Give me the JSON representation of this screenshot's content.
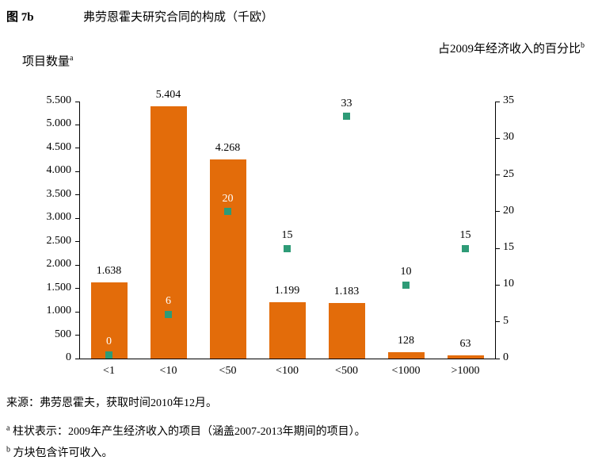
{
  "figure": {
    "tag": "图 7b",
    "title": "弗劳恩霍夫研究合同的构成（千欧）"
  },
  "left_axis_title": {
    "text": "项目数量",
    "sup": "a"
  },
  "right_axis_title": {
    "text": "占2009年经济收入的百分比",
    "sup": "b"
  },
  "chart_data": {
    "type": "combo",
    "title": "弗劳恩霍夫研究合同的构成（千欧）",
    "categories": [
      "<1",
      "<10",
      "<50",
      "<100",
      "<500",
      "<1000",
      ">1000"
    ],
    "series": [
      {
        "name": "项目数量（柱状）",
        "type": "bar",
        "axis": "left",
        "color": "#E36C0A",
        "values": [
          1638,
          5404,
          4268,
          1199,
          1183,
          128,
          63
        ],
        "labels": [
          "1.638",
          "5.404",
          "4.268",
          "1.199",
          "1.183",
          "128",
          "63"
        ]
      },
      {
        "name": "占2009年经济收入的百分比（方块）",
        "type": "scatter",
        "axis": "right",
        "color": "#2E9B77",
        "values": [
          0,
          6,
          20,
          15,
          33,
          10,
          15
        ],
        "labels": [
          "0",
          "6",
          "20",
          "15",
          "33",
          "10",
          "15"
        ]
      }
    ],
    "left_axis": {
      "min": 0,
      "max": 5500,
      "tick_step": 500,
      "tick_labels": [
        "0",
        "500",
        "1.000",
        "1.500",
        "2.000",
        "2.500",
        "3.000",
        "3.500",
        "4.000",
        "4.500",
        "5.000",
        "5.500"
      ]
    },
    "right_axis": {
      "min": 0,
      "max": 35,
      "tick_step": 5,
      "tick_labels": [
        "0",
        "5",
        "10",
        "15",
        "20",
        "25",
        "30",
        "35"
      ]
    },
    "grid": false,
    "legend": "none"
  },
  "footer": {
    "source": "来源：弗劳恩霍夫，获取时间2010年12月。",
    "note_a_sup": "a",
    "note_a": "柱状表示：2009年产生经济收入的项目（涵盖2007-2013年期间的项目）。",
    "note_b_sup": "b",
    "note_b": "方块包含许可收入。"
  }
}
